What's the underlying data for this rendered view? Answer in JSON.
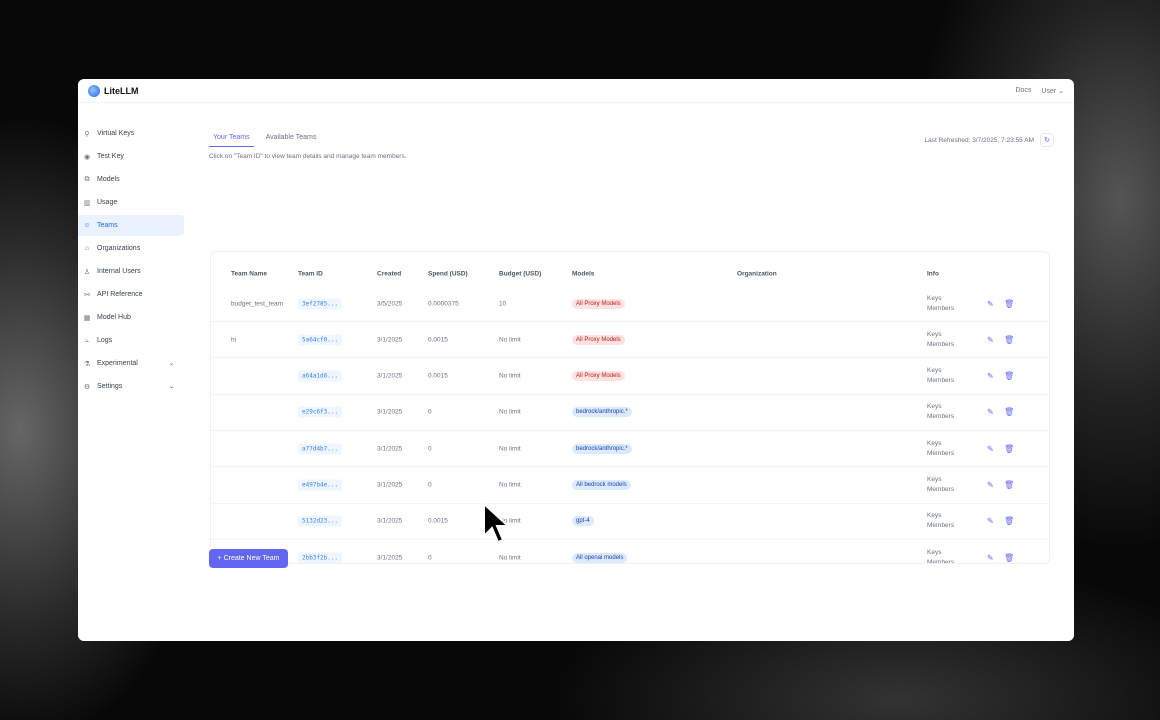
{
  "app": {
    "name": "LiteLLM",
    "docs": "Docs",
    "user": "User"
  },
  "sidebar": {
    "items": [
      {
        "label": "Virtual Keys",
        "icon": "key-icon",
        "glyph": "⚲"
      },
      {
        "label": "Test Key",
        "icon": "play-circle-icon",
        "glyph": "◉"
      },
      {
        "label": "Models",
        "icon": "block-icon",
        "glyph": "⧉"
      },
      {
        "label": "Usage",
        "icon": "bar-chart-icon",
        "glyph": "▥"
      },
      {
        "label": "Teams",
        "icon": "team-icon",
        "glyph": "☺",
        "active": true
      },
      {
        "label": "Organizations",
        "icon": "bank-icon",
        "glyph": "⌂"
      },
      {
        "label": "Internal Users",
        "icon": "user-icon",
        "glyph": "♙"
      },
      {
        "label": "API Reference",
        "icon": "api-icon",
        "glyph": "⚯"
      },
      {
        "label": "Model Hub",
        "icon": "app-store-icon",
        "glyph": "▦"
      },
      {
        "label": "Logs",
        "icon": "line-chart-icon",
        "glyph": "⦣"
      },
      {
        "label": "Experimental",
        "icon": "experiment-icon",
        "glyph": "⚗",
        "chevron": true
      },
      {
        "label": "Settings",
        "icon": "settings-icon",
        "glyph": "⚙",
        "chevron": true
      }
    ]
  },
  "main": {
    "tabs": [
      "Your Teams",
      "Available Teams"
    ],
    "hint": "Click on \"Team ID\" to view team details and manage team members.",
    "last_refreshed": "Last Refreshed: 3/7/2025, 7:23:55 AM",
    "create_button": "+ Create New Team"
  },
  "table": {
    "columns": [
      "Team Name",
      "Team ID",
      "Created",
      "Spend (USD)",
      "Budget (USD)",
      "Models",
      "Organization",
      "Info"
    ],
    "rows": [
      {
        "name": "budget_test_team",
        "id": "3ef2785...",
        "created": "3/5/2025",
        "spend": "0.0000375",
        "budget": "10",
        "model": "All Proxy Models",
        "model_color": "red",
        "info": [
          "Keys",
          "Members"
        ]
      },
      {
        "name": "hi",
        "id": "5a64cf0...",
        "created": "3/1/2025",
        "spend": "0.0015",
        "budget": "No limit",
        "model": "All Proxy Models",
        "model_color": "red",
        "info": [
          "Keys",
          "Members"
        ]
      },
      {
        "name": "",
        "id": "a64a1d6...",
        "created": "3/1/2025",
        "spend": "0.0015",
        "budget": "No limit",
        "model": "All Proxy Models",
        "model_color": "red",
        "info": [
          "Keys",
          "Members"
        ]
      },
      {
        "name": "",
        "id": "e29c6f3...",
        "created": "3/1/2025",
        "spend": "0",
        "budget": "No limit",
        "model": "bedrock/anthropic.*",
        "model_color": "blue",
        "info": [
          "Keys",
          "Members"
        ]
      },
      {
        "name": "",
        "id": "a77d4b7...",
        "created": "3/1/2025",
        "spend": "0",
        "budget": "No limit",
        "model": "bedrock/anthropic.*",
        "model_color": "blue",
        "info": [
          "Keys",
          "Members"
        ]
      },
      {
        "name": "",
        "id": "e497b4e...",
        "created": "3/1/2025",
        "spend": "0",
        "budget": "No limit",
        "model": "All bedrock models",
        "model_color": "blue",
        "info": [
          "Keys",
          "Members"
        ]
      },
      {
        "name": "",
        "id": "5132d23...",
        "created": "3/1/2025",
        "spend": "0.0015",
        "budget": "No limit",
        "model": "gpt-4",
        "model_color": "blue",
        "info": [
          "Keys",
          "Members"
        ]
      },
      {
        "name": "",
        "id": "2bb3f2b...",
        "created": "3/1/2025",
        "spend": "0",
        "budget": "No limit",
        "model": "All openai models",
        "model_color": "blue",
        "info": [
          "Keys",
          "Members"
        ]
      }
    ]
  }
}
